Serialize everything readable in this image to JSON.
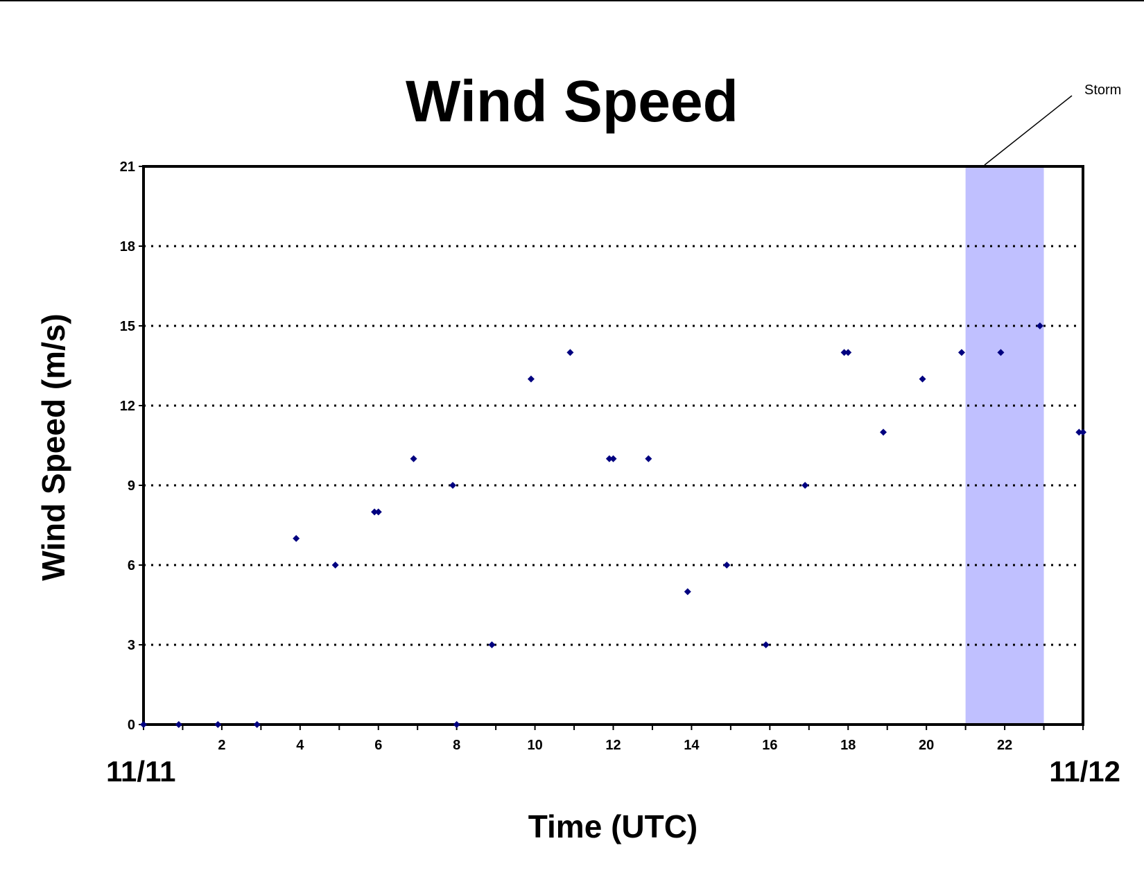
{
  "chart_data": {
    "type": "scatter",
    "title": "Wind Speed",
    "xlabel": "Time (UTC)",
    "ylabel": "Wind Speed (m/s)",
    "xlim": [
      0,
      24
    ],
    "ylim": [
      0,
      21
    ],
    "x_ticks": [
      2,
      4,
      6,
      8,
      10,
      12,
      14,
      16,
      18,
      20,
      22
    ],
    "y_ticks": [
      0,
      3,
      6,
      9,
      12,
      15,
      18,
      21
    ],
    "date_labels": {
      "start": "11/11",
      "end": "11/12"
    },
    "grid": {
      "horizontal": true,
      "style": "dotted"
    },
    "marker_color": "#000080",
    "shaded_region": {
      "label": "Storm",
      "x_start": 21,
      "x_end": 23,
      "color": "#c0c0ff"
    },
    "series": [
      {
        "points": [
          {
            "x": 0.0,
            "y": 0
          },
          {
            "x": 0.9,
            "y": 0
          },
          {
            "x": 1.9,
            "y": 0
          },
          {
            "x": 2.9,
            "y": 0
          },
          {
            "x": 3.9,
            "y": 7
          },
          {
            "x": 4.9,
            "y": 6
          },
          {
            "x": 5.9,
            "y": 8
          },
          {
            "x": 6.0,
            "y": 8
          },
          {
            "x": 6.9,
            "y": 10
          },
          {
            "x": 7.9,
            "y": 9
          },
          {
            "x": 8.0,
            "y": 0
          },
          {
            "x": 8.9,
            "y": 3
          },
          {
            "x": 9.9,
            "y": 13
          },
          {
            "x": 10.9,
            "y": 14
          },
          {
            "x": 11.9,
            "y": 10
          },
          {
            "x": 12.0,
            "y": 10
          },
          {
            "x": 12.9,
            "y": 10
          },
          {
            "x": 13.9,
            "y": 5
          },
          {
            "x": 14.9,
            "y": 6
          },
          {
            "x": 15.9,
            "y": 3
          },
          {
            "x": 16.9,
            "y": 9
          },
          {
            "x": 17.9,
            "y": 14
          },
          {
            "x": 18.0,
            "y": 14
          },
          {
            "x": 18.9,
            "y": 11
          },
          {
            "x": 19.9,
            "y": 13
          },
          {
            "x": 20.9,
            "y": 14
          },
          {
            "x": 21.9,
            "y": 14
          },
          {
            "x": 22.9,
            "y": 15
          },
          {
            "x": 23.9,
            "y": 11
          },
          {
            "x": 24.0,
            "y": 11
          }
        ]
      }
    ]
  }
}
